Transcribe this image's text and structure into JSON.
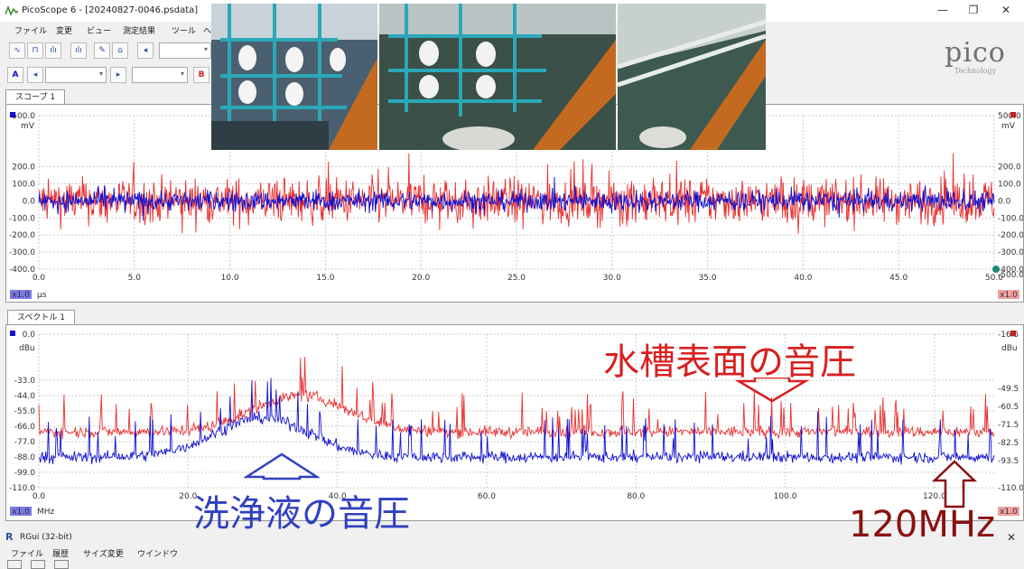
{
  "app": {
    "title": "PicoScope 6 - [20240827-0046.psdata]",
    "menu": [
      "ファイル",
      "変更",
      "ビュー",
      "測定結果",
      "ツール",
      "ヘ"
    ],
    "logo_text": "pico",
    "logo_sub": "Technology",
    "toolbar2": {
      "a_label": "A",
      "b_label": "B"
    }
  },
  "scope": {
    "tab_label": "スコープ 1",
    "unit_left": "mV",
    "unit_right": "mV",
    "x_unit": "μs",
    "zoom": "x1.0",
    "zoom_right": "x1.0"
  },
  "spectrum": {
    "tab_label": "スペクトル 1",
    "unit_left": "dBu",
    "unit_right": "dBu",
    "x_unit": "MHz",
    "zoom": "x1.0",
    "zoom_right": "x1.0"
  },
  "annotations": {
    "surface": "水槽表面の音圧",
    "cleaning": "洗浄液の音圧",
    "freq_mark": "120MHz"
  },
  "rgui": {
    "title": "RGui (32-bit)",
    "menu": [
      "ファイル",
      "履歴",
      "サイズ変更",
      "ウインドウ"
    ]
  },
  "colors": {
    "channel_a": "#1010d0",
    "channel_b": "#e83030",
    "annotation_red": "#d82020",
    "annotation_blue": "#3040c0",
    "annotation_dark": "#8a1010"
  },
  "chart_data": [
    {
      "type": "line",
      "title": "",
      "xlabel": "μs",
      "ylabel": "mV",
      "x_ticks": [
        "0.0",
        "5.0",
        "10.0",
        "15.0",
        "20.0",
        "25.0",
        "30.0",
        "35.0",
        "40.0",
        "45.0",
        "50.0"
      ],
      "y_ticks_left": [
        "500.0",
        "200.0",
        "100.0",
        "0.0",
        "-100.0",
        "-200.0",
        "-300.0",
        "-400.0"
      ],
      "y_ticks_right": [
        "500.0",
        "200.0",
        "100.0",
        "0.0",
        "-100.0",
        "-200.0",
        "-300.0",
        "-400.0",
        "-500.0"
      ],
      "xlim": [
        0,
        50
      ],
      "ylim": [
        -400,
        500
      ],
      "series": [
        {
          "name": "A",
          "color": "#1010d0",
          "amplitude": 100
        },
        {
          "name": "B",
          "color": "#e83030",
          "amplitude": 220
        }
      ]
    },
    {
      "type": "line",
      "title": "",
      "xlabel": "MHz",
      "ylabel": "dBu",
      "x_ticks": [
        "0.0",
        "20.0",
        "40.0",
        "60.0",
        "80.0",
        "100.0",
        "120.0"
      ],
      "y_ticks_left": [
        "0.0",
        "-33.0",
        "-44.0",
        "-55.0",
        "-66.0",
        "-77.0",
        "-88.0",
        "-99.0",
        "-110.0"
      ],
      "y_ticks_right": [
        "-16.5",
        "-49.5",
        "-60.5",
        "-71.5",
        "-82.5",
        "-93.5",
        "-110.0"
      ],
      "xlim": [
        0,
        128
      ],
      "series": [
        {
          "name": "A",
          "color": "#1010d0",
          "floor_dBu": -88,
          "peak_dBu": -60,
          "peak_MHz": 30
        },
        {
          "name": "B",
          "color": "#e83030",
          "floor_dBu": -70,
          "peak_dBu": -44,
          "peak_MHz": 35
        }
      ]
    }
  ]
}
